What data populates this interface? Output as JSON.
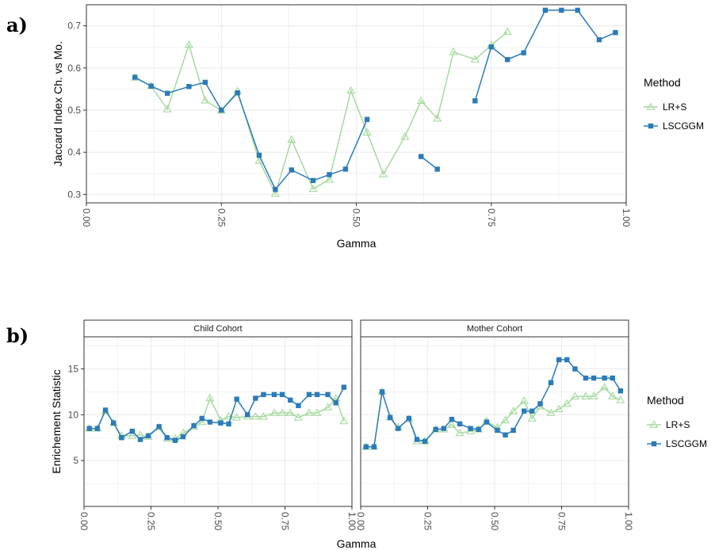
{
  "colors": {
    "lrs": "#a6d9a0",
    "lscggm": "#2b7bb9",
    "grid": "#ebebeb",
    "axis_text": "#4d4d4d"
  },
  "figure": {
    "panel_a_tag": "a)",
    "panel_b_tag": "b)"
  },
  "chart_data": [
    {
      "type": "line",
      "panel": "a)",
      "xlabel": "Gamma",
      "ylabel": "Jaccard Index Ch. vs Mo.",
      "xlim": [
        0,
        1
      ],
      "ylim": [
        0.28,
        0.75
      ],
      "x_ticks": [
        "0.00",
        "0.25",
        "0.50",
        "0.75",
        "1.00"
      ],
      "x_tick_values": [
        0,
        0.25,
        0.5,
        0.75,
        1
      ],
      "y_ticks": [
        "0.3",
        "0.4",
        "0.5",
        "0.6",
        "0.7"
      ],
      "y_tick_values": [
        0.3,
        0.4,
        0.5,
        0.6,
        0.7
      ],
      "grid": true,
      "legend": {
        "title": "Method",
        "position": "right",
        "entries": [
          "LR+S",
          "LSCGGM"
        ]
      },
      "series": [
        {
          "name": "LR+S",
          "marker": "triangle-open",
          "segments": [
            [
              [
                0.09,
                0.577
              ],
              [
                0.12,
                0.557
              ],
              [
                0.15,
                0.502
              ],
              [
                0.19,
                0.655
              ],
              [
                0.22,
                0.523
              ],
              [
                0.25,
                0.499
              ],
              [
                0.28,
                0.545
              ],
              [
                0.32,
                0.38
              ],
              [
                0.35,
                0.302
              ],
              [
                0.38,
                0.43
              ],
              [
                0.42,
                0.313
              ],
              [
                0.45,
                0.335
              ],
              [
                0.49,
                0.546
              ],
              [
                0.52,
                0.447
              ],
              [
                0.55,
                0.348
              ],
              [
                0.59,
                0.437
              ],
              [
                0.62,
                0.522
              ],
              [
                0.65,
                0.48
              ],
              [
                0.68,
                0.638
              ],
              [
                0.72,
                0.62
              ],
              [
                0.75,
                0.654
              ],
              [
                0.78,
                0.686
              ]
            ]
          ]
        },
        {
          "name": "LSCGGM",
          "marker": "square",
          "segments": [
            [
              [
                0.09,
                0.578
              ],
              [
                0.12,
                0.557
              ],
              [
                0.15,
                0.54
              ],
              [
                0.19,
                0.556
              ],
              [
                0.22,
                0.566
              ],
              [
                0.25,
                0.5
              ],
              [
                0.28,
                0.541
              ],
              [
                0.32,
                0.393
              ],
              [
                0.35,
                0.312
              ],
              [
                0.38,
                0.358
              ],
              [
                0.42,
                0.333
              ],
              [
                0.45,
                0.347
              ],
              [
                0.48,
                0.36
              ],
              [
                0.52,
                0.478
              ]
            ],
            [
              [
                0.62,
                0.39
              ],
              [
                0.65,
                0.36
              ]
            ],
            [
              [
                0.72,
                0.522
              ],
              [
                0.75,
                0.65
              ],
              [
                0.78,
                0.62
              ],
              [
                0.81,
                0.636
              ],
              [
                0.85,
                0.737
              ],
              [
                0.88,
                0.737
              ],
              [
                0.91,
                0.737
              ],
              [
                0.95,
                0.667
              ],
              [
                0.98,
                0.684
              ]
            ]
          ]
        }
      ]
    },
    {
      "type": "line",
      "panel": "b)",
      "xlabel": "Gamma",
      "ylabel": "Enrichement Statistic",
      "xlim": [
        0,
        1
      ],
      "ylim": [
        0,
        18.5
      ],
      "x_ticks": [
        "0.00",
        "0.25",
        "0.50",
        "0.75",
        "1.00"
      ],
      "x_tick_values": [
        0,
        0.25,
        0.5,
        0.75,
        1
      ],
      "y_ticks": [
        "5",
        "10",
        "15"
      ],
      "y_tick_values": [
        5,
        10,
        15
      ],
      "grid": true,
      "legend": {
        "title": "Method",
        "position": "right",
        "entries": [
          "LR+S",
          "LSCGGM"
        ]
      },
      "facets": [
        {
          "title": "Child Cohort",
          "series": [
            {
              "name": "LR+S",
              "marker": "triangle-open",
              "segments": [
                [
                  [
                    0.02,
                    8.5
                  ],
                  [
                    0.05,
                    8.5
                  ],
                  [
                    0.08,
                    10.4
                  ],
                  [
                    0.11,
                    9.1
                  ],
                  [
                    0.14,
                    7.7
                  ],
                  [
                    0.18,
                    7.7
                  ],
                  [
                    0.21,
                    7.8
                  ],
                  [
                    0.24,
                    7.6
                  ],
                  [
                    0.28,
                    8.6
                  ],
                  [
                    0.31,
                    7.4
                  ],
                  [
                    0.34,
                    7.4
                  ],
                  [
                    0.37,
                    8.0
                  ],
                  [
                    0.41,
                    8.7
                  ],
                  [
                    0.44,
                    9.2
                  ],
                  [
                    0.47,
                    11.8
                  ],
                  [
                    0.51,
                    9.4
                  ],
                  [
                    0.54,
                    9.8
                  ],
                  [
                    0.57,
                    9.7
                  ],
                  [
                    0.61,
                    9.8
                  ],
                  [
                    0.64,
                    9.8
                  ],
                  [
                    0.67,
                    9.8
                  ],
                  [
                    0.71,
                    10.2
                  ],
                  [
                    0.74,
                    10.2
                  ],
                  [
                    0.77,
                    10.2
                  ],
                  [
                    0.8,
                    9.7
                  ],
                  [
                    0.84,
                    10.2
                  ],
                  [
                    0.87,
                    10.2
                  ],
                  [
                    0.91,
                    10.8
                  ],
                  [
                    0.94,
                    11.8
                  ],
                  [
                    0.97,
                    9.3
                  ]
                ]
              ]
            },
            {
              "name": "LSCGGM",
              "marker": "square",
              "segments": [
                [
                  [
                    0.02,
                    8.5
                  ],
                  [
                    0.05,
                    8.5
                  ],
                  [
                    0.08,
                    10.5
                  ],
                  [
                    0.11,
                    9.1
                  ],
                  [
                    0.14,
                    7.5
                  ],
                  [
                    0.18,
                    8.2
                  ],
                  [
                    0.21,
                    7.3
                  ],
                  [
                    0.24,
                    7.7
                  ],
                  [
                    0.28,
                    8.7
                  ],
                  [
                    0.31,
                    7.5
                  ],
                  [
                    0.34,
                    7.2
                  ],
                  [
                    0.37,
                    7.6
                  ],
                  [
                    0.41,
                    8.8
                  ],
                  [
                    0.44,
                    9.6
                  ],
                  [
                    0.47,
                    9.2
                  ],
                  [
                    0.51,
                    9.1
                  ],
                  [
                    0.54,
                    9.0
                  ],
                  [
                    0.57,
                    11.7
                  ],
                  [
                    0.61,
                    10.0
                  ],
                  [
                    0.64,
                    11.8
                  ],
                  [
                    0.67,
                    12.2
                  ],
                  [
                    0.71,
                    12.2
                  ],
                  [
                    0.74,
                    12.2
                  ],
                  [
                    0.77,
                    11.6
                  ],
                  [
                    0.8,
                    11.0
                  ],
                  [
                    0.84,
                    12.2
                  ],
                  [
                    0.87,
                    12.2
                  ],
                  [
                    0.91,
                    12.2
                  ],
                  [
                    0.94,
                    11.3
                  ],
                  [
                    0.97,
                    13.0
                  ]
                ]
              ]
            }
          ]
        },
        {
          "title": "Mother Cohort",
          "series": [
            {
              "name": "LR+S",
              "marker": "triangle-open",
              "segments": [
                [
                  [
                    0.02,
                    6.5
                  ],
                  [
                    0.05,
                    6.5
                  ],
                  [
                    0.08,
                    12.5
                  ],
                  [
                    0.11,
                    9.7
                  ],
                  [
                    0.14,
                    8.6
                  ],
                  [
                    0.18,
                    9.5
                  ],
                  [
                    0.21,
                    7.1
                  ],
                  [
                    0.24,
                    7.1
                  ],
                  [
                    0.28,
                    8.4
                  ],
                  [
                    0.31,
                    8.4
                  ],
                  [
                    0.34,
                    8.9
                  ],
                  [
                    0.37,
                    8.0
                  ],
                  [
                    0.41,
                    8.2
                  ],
                  [
                    0.44,
                    8.4
                  ],
                  [
                    0.47,
                    9.3
                  ],
                  [
                    0.51,
                    8.6
                  ],
                  [
                    0.54,
                    9.4
                  ],
                  [
                    0.57,
                    10.4
                  ],
                  [
                    0.61,
                    11.5
                  ],
                  [
                    0.64,
                    9.6
                  ],
                  [
                    0.67,
                    10.9
                  ],
                  [
                    0.71,
                    10.2
                  ],
                  [
                    0.74,
                    10.6
                  ],
                  [
                    0.77,
                    11.2
                  ],
                  [
                    0.8,
                    12.0
                  ],
                  [
                    0.84,
                    12.0
                  ],
                  [
                    0.87,
                    12.0
                  ],
                  [
                    0.91,
                    13.0
                  ],
                  [
                    0.94,
                    12.0
                  ],
                  [
                    0.97,
                    11.6
                  ]
                ]
              ]
            },
            {
              "name": "LSCGGM",
              "marker": "square",
              "segments": [
                [
                  [
                    0.02,
                    6.5
                  ],
                  [
                    0.05,
                    6.5
                  ],
                  [
                    0.08,
                    12.5
                  ],
                  [
                    0.11,
                    9.7
                  ],
                  [
                    0.14,
                    8.5
                  ],
                  [
                    0.18,
                    9.6
                  ],
                  [
                    0.21,
                    7.3
                  ],
                  [
                    0.24,
                    7.1
                  ],
                  [
                    0.28,
                    8.4
                  ],
                  [
                    0.31,
                    8.5
                  ],
                  [
                    0.34,
                    9.5
                  ],
                  [
                    0.37,
                    9.0
                  ],
                  [
                    0.41,
                    8.5
                  ],
                  [
                    0.44,
                    8.4
                  ],
                  [
                    0.47,
                    9.2
                  ],
                  [
                    0.51,
                    8.3
                  ],
                  [
                    0.54,
                    7.8
                  ],
                  [
                    0.57,
                    8.3
                  ],
                  [
                    0.61,
                    10.4
                  ],
                  [
                    0.64,
                    10.4
                  ],
                  [
                    0.67,
                    11.2
                  ],
                  [
                    0.71,
                    13.5
                  ],
                  [
                    0.74,
                    16.0
                  ],
                  [
                    0.77,
                    16.0
                  ],
                  [
                    0.8,
                    15.0
                  ],
                  [
                    0.84,
                    14.0
                  ],
                  [
                    0.87,
                    14.0
                  ],
                  [
                    0.91,
                    14.0
                  ],
                  [
                    0.94,
                    14.0
                  ],
                  [
                    0.97,
                    12.6
                  ]
                ]
              ]
            }
          ]
        }
      ]
    }
  ]
}
